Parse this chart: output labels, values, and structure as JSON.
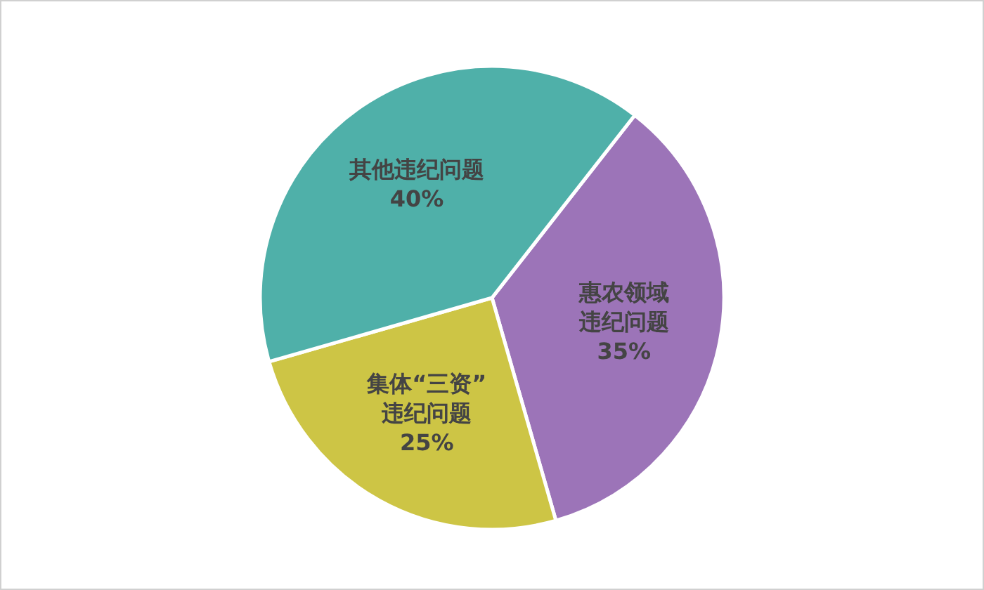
{
  "chart_data": {
    "type": "pie",
    "categories": [
      "惠农领域违纪问题",
      "集体“三资”违纪问题",
      "其他违纪问题"
    ],
    "values": [
      35,
      25,
      40
    ],
    "colors": [
      "#9c74b8",
      "#cdc545",
      "#4fb0a9"
    ],
    "value_labels": [
      "35%",
      "25%",
      "40%"
    ]
  }
}
